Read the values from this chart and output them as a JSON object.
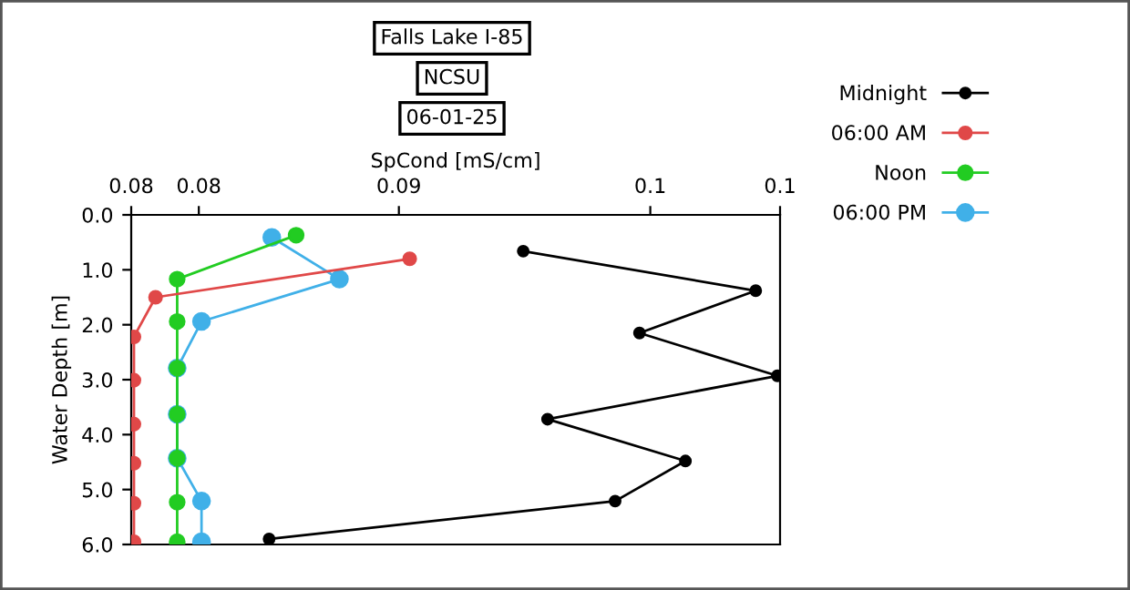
{
  "chart_data": {
    "type": "line",
    "title": "Falls Lake I-85",
    "subtitle": "NCSU",
    "annotations": [
      "06-01-25"
    ],
    "xlabel": "SpCond [mS/cm]",
    "ylabel": "Water Depth [m]",
    "xlim": [
      0.078,
      0.102
    ],
    "xticks": [
      {
        "value": 0.078,
        "label": "0.08"
      },
      {
        "value": 0.0805,
        "label": "0.08"
      },
      {
        "value": 0.0879,
        "label": "0.09"
      },
      {
        "value": 0.0972,
        "label": "0.1"
      },
      {
        "value": 0.102,
        "label": "0.1"
      }
    ],
    "ylim": [
      6,
      0
    ],
    "yticks": [
      {
        "value": 0,
        "label": "0.0"
      },
      {
        "value": 1,
        "label": "1.0"
      },
      {
        "value": 2,
        "label": "2.0"
      },
      {
        "value": 3,
        "label": "3.0"
      },
      {
        "value": 4,
        "label": "4.0"
      },
      {
        "value": 5,
        "label": "5.0"
      },
      {
        "value": 6,
        "label": "6.0"
      }
    ],
    "grid": false,
    "legend": "top right",
    "marker": "circle",
    "line_style": "solid",
    "series": [
      {
        "name": "Midnight",
        "color": "#000000",
        "x": [
          0.0925,
          0.1011,
          0.0968,
          0.1019,
          0.0934,
          0.0985,
          0.0959,
          0.0831
        ],
        "values": [
          0.66,
          1.38,
          2.15,
          2.93,
          3.72,
          4.48,
          5.21,
          5.9
        ]
      },
      {
        "name": "06:00 AM",
        "color": "#e04848",
        "x": [
          0.0883,
          0.0789,
          0.0781,
          0.0781,
          0.0781,
          0.0781,
          0.0781,
          0.0781
        ],
        "values": [
          0.8,
          1.5,
          2.22,
          3.01,
          3.81,
          4.52,
          5.25,
          5.95
        ]
      },
      {
        "name": "Noon",
        "color": "#22cc22",
        "x": [
          0.0841,
          0.0797,
          0.0797,
          0.0797,
          0.0797,
          0.0797,
          0.0797,
          0.0797
        ],
        "values": [
          0.37,
          1.17,
          1.94,
          2.79,
          3.63,
          4.43,
          5.23,
          5.95
        ]
      },
      {
        "name": "06:00 PM",
        "color": "#40b0e8",
        "x": [
          0.0832,
          0.0857,
          0.0806,
          0.0797,
          0.0797,
          0.0797,
          0.0806,
          0.0806
        ],
        "values": [
          0.41,
          1.17,
          1.94,
          2.79,
          3.63,
          4.43,
          5.21,
          5.95
        ]
      }
    ]
  }
}
